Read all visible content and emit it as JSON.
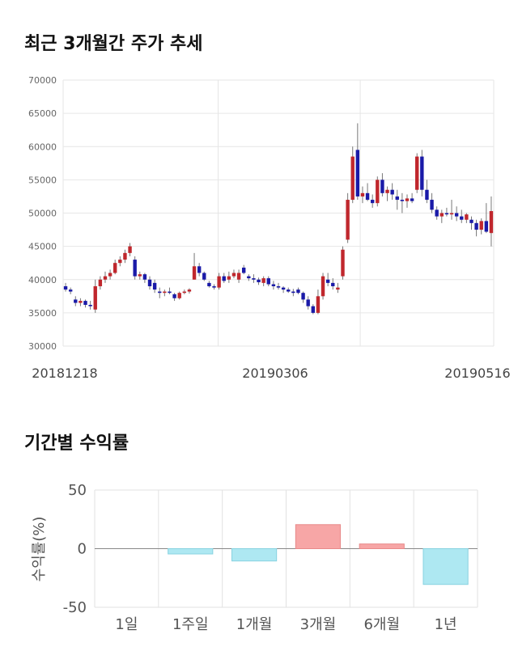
{
  "sections": {
    "price_title": "최근 3개월간 주가 추세",
    "returns_title": "기간별 수익률"
  },
  "chart_data": [
    {
      "type": "candlestick",
      "ylim": [
        30000,
        70000
      ],
      "yticks": [
        30000,
        35000,
        40000,
        45000,
        50000,
        55000,
        60000,
        65000,
        70000
      ],
      "xticks": [
        "20181218",
        "20190306",
        "20190516"
      ],
      "colors": {
        "up": "#c0272d",
        "down": "#1a1aa8",
        "grid": "#e6e6e6"
      },
      "candles": [
        [
          39000,
          39500,
          38200,
          38500
        ],
        [
          38500,
          38800,
          37800,
          38200
        ],
        [
          37000,
          37500,
          36000,
          36500
        ],
        [
          36500,
          37200,
          36000,
          36800
        ],
        [
          36800,
          37000,
          35800,
          36200
        ],
        [
          36200,
          36800,
          35500,
          36000
        ],
        [
          35500,
          40000,
          35000,
          39000
        ],
        [
          39000,
          40500,
          38500,
          40000
        ],
        [
          40000,
          41200,
          39500,
          40500
        ],
        [
          40500,
          41500,
          40000,
          41000
        ],
        [
          41000,
          43000,
          40800,
          42500
        ],
        [
          42500,
          43500,
          42000,
          43000
        ],
        [
          43000,
          44500,
          42500,
          44000
        ],
        [
          44000,
          45500,
          43500,
          45000
        ],
        [
          43000,
          43500,
          40000,
          40500
        ],
        [
          40500,
          41200,
          40000,
          40800
        ],
        [
          40800,
          41000,
          39500,
          40000
        ],
        [
          40000,
          40500,
          38500,
          39000
        ],
        [
          39500,
          40000,
          38000,
          38500
        ],
        [
          38200,
          38800,
          37200,
          38000
        ],
        [
          38000,
          38500,
          37500,
          38200
        ],
        [
          38200,
          38800,
          37800,
          38000
        ],
        [
          37800,
          38000,
          36800,
          37200
        ],
        [
          37200,
          38200,
          37000,
          38000
        ],
        [
          38000,
          38500,
          37800,
          38200
        ],
        [
          38200,
          38700,
          37900,
          38500
        ],
        [
          40000,
          44000,
          40000,
          42000
        ],
        [
          42000,
          42500,
          40500,
          41000
        ],
        [
          41000,
          41200,
          39800,
          40000
        ],
        [
          39500,
          39800,
          38800,
          39000
        ],
        [
          39000,
          39300,
          38500,
          38800
        ],
        [
          38800,
          41000,
          38500,
          40500
        ],
        [
          40500,
          41000,
          39500,
          39800
        ],
        [
          40000,
          41200,
          39500,
          40500
        ],
        [
          40500,
          41500,
          40200,
          41000
        ],
        [
          40000,
          41500,
          39500,
          41000
        ],
        [
          41800,
          42200,
          40800,
          41000
        ],
        [
          40500,
          40800,
          39800,
          40200
        ],
        [
          40200,
          40800,
          39500,
          40000
        ],
        [
          40000,
          40300,
          39200,
          39600
        ],
        [
          39500,
          40500,
          39000,
          40200
        ],
        [
          40200,
          40500,
          39000,
          39300
        ],
        [
          39300,
          39800,
          38500,
          39000
        ],
        [
          39000,
          39500,
          38500,
          38800
        ],
        [
          38800,
          39000,
          38000,
          38500
        ],
        [
          38500,
          38800,
          38000,
          38200
        ],
        [
          38200,
          38600,
          37500,
          38000
        ],
        [
          38500,
          38800,
          37800,
          38000
        ],
        [
          38000,
          38200,
          36500,
          37000
        ],
        [
          37000,
          37500,
          35500,
          36000
        ],
        [
          36000,
          36300,
          34800,
          35000
        ],
        [
          35000,
          38500,
          34800,
          37500
        ],
        [
          37500,
          41000,
          37000,
          40500
        ],
        [
          40000,
          41000,
          39000,
          39500
        ],
        [
          39500,
          40200,
          38500,
          39000
        ],
        [
          38500,
          39500,
          38000,
          38800
        ],
        [
          40500,
          45000,
          40000,
          44500
        ],
        [
          46000,
          53000,
          45500,
          52000
        ],
        [
          52000,
          60000,
          51500,
          58500
        ],
        [
          59500,
          63500,
          52000,
          52500
        ],
        [
          52500,
          54000,
          51500,
          53000
        ],
        [
          53000,
          54500,
          51800,
          52000
        ],
        [
          52000,
          52800,
          50800,
          51500
        ],
        [
          51500,
          55500,
          51000,
          55000
        ],
        [
          55000,
          56000,
          52500,
          53000
        ],
        [
          53000,
          54000,
          51800,
          53500
        ],
        [
          53500,
          54500,
          52000,
          52800
        ],
        [
          52500,
          53500,
          50500,
          52000
        ],
        [
          52000,
          53000,
          50000,
          51800
        ],
        [
          51800,
          52800,
          50800,
          52200
        ],
        [
          52200,
          53000,
          51500,
          51800
        ],
        [
          53500,
          59000,
          53000,
          58500
        ],
        [
          58500,
          59500,
          52500,
          53500
        ],
        [
          53500,
          55000,
          51500,
          52000
        ],
        [
          52000,
          53000,
          50000,
          50500
        ],
        [
          50500,
          51000,
          49000,
          49500
        ],
        [
          49500,
          50500,
          48500,
          50000
        ],
        [
          50000,
          50800,
          49500,
          49800
        ],
        [
          49800,
          52000,
          49000,
          50000
        ],
        [
          50000,
          51000,
          48800,
          49500
        ],
        [
          49500,
          50500,
          48500,
          49000
        ],
        [
          49000,
          50000,
          48500,
          49800
        ],
        [
          49000,
          49500,
          47500,
          48500
        ],
        [
          48500,
          49000,
          46500,
          47500
        ],
        [
          47500,
          49200,
          46800,
          48800
        ],
        [
          48800,
          51500,
          47000,
          47200
        ],
        [
          47000,
          52500,
          45000,
          50300
        ]
      ]
    },
    {
      "type": "bar",
      "categories": [
        "1일",
        "1주일",
        "1개월",
        "3개월",
        "6개월",
        "1년"
      ],
      "values": [
        0,
        -4.5,
        -10.5,
        20.5,
        4.0,
        -30.5
      ],
      "ylim": [
        -50,
        50
      ],
      "yticks": [
        50,
        0,
        -50
      ],
      "ylabel": "수익률(%)",
      "colors": {
        "positive": "#f7a6a6",
        "positive_border": "#e88a8a",
        "negative": "#aee8f2",
        "negative_border": "#88d2e0"
      }
    }
  ]
}
